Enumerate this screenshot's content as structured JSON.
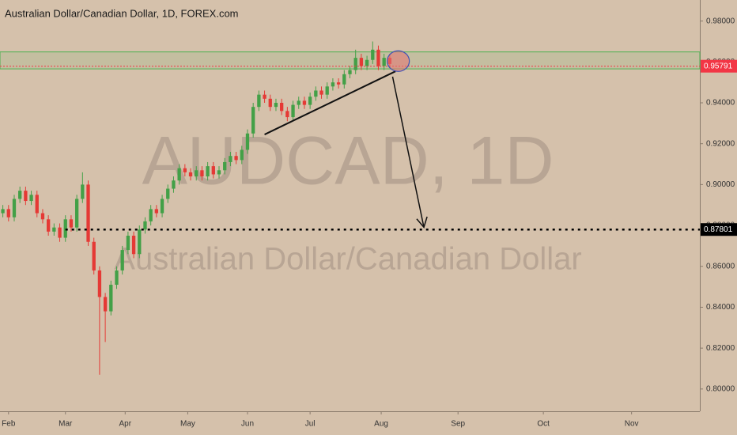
{
  "chart_data": {
    "type": "candlestick",
    "title": "Australian Dollar/Canadian Dollar, 1D, FOREX.com",
    "watermark": "AUDCAD, 1D",
    "watermark_subtitle": "Australian Dollar/Canadian Dollar",
    "up_color": "#43a047",
    "down_color": "#e53935",
    "x": [
      -2,
      0,
      2,
      4,
      6,
      8,
      10,
      12,
      14,
      16,
      18,
      20,
      22,
      24,
      26,
      28,
      30,
      32,
      34,
      36,
      38,
      40,
      42,
      44,
      46,
      48,
      50,
      52,
      54,
      56,
      58,
      60,
      62,
      64,
      66,
      68,
      70,
      72,
      74,
      76,
      78,
      80,
      82,
      84,
      86,
      88,
      90,
      92,
      94,
      96,
      98,
      100,
      102,
      104,
      106,
      108,
      110,
      112,
      114,
      116,
      118,
      120,
      122,
      124,
      126,
      128,
      130,
      132,
      134
    ],
    "open": [
      0.886,
      0.888,
      0.884,
      0.893,
      0.897,
      0.892,
      0.895,
      0.886,
      0.883,
      0.877,
      0.879,
      0.874,
      0.883,
      0.879,
      0.893,
      0.9,
      0.872,
      0.858,
      0.845,
      0.838,
      0.851,
      0.858,
      0.868,
      0.875,
      0.866,
      0.878,
      0.882,
      0.888,
      0.886,
      0.893,
      0.898,
      0.902,
      0.908,
      0.906,
      0.904,
      0.907,
      0.904,
      0.909,
      0.905,
      0.907,
      0.911,
      0.914,
      0.912,
      0.917,
      0.925,
      0.938,
      0.944,
      0.942,
      0.938,
      0.94,
      0.936,
      0.933,
      0.939,
      0.941,
      0.939,
      0.943,
      0.946,
      0.944,
      0.948,
      0.95,
      0.949,
      0.954,
      0.956,
      0.962,
      0.958,
      0.961,
      0.966,
      0.958,
      0.962
    ],
    "high": [
      0.89,
      0.89,
      0.895,
      0.899,
      0.899,
      0.897,
      0.897,
      0.888,
      0.885,
      0.881,
      0.881,
      0.885,
      0.885,
      0.895,
      0.906,
      0.902,
      0.874,
      0.86,
      0.847,
      0.853,
      0.86,
      0.87,
      0.877,
      0.877,
      0.88,
      0.884,
      0.89,
      0.89,
      0.895,
      0.9,
      0.904,
      0.91,
      0.91,
      0.908,
      0.909,
      0.909,
      0.911,
      0.911,
      0.909,
      0.913,
      0.916,
      0.916,
      0.919,
      0.927,
      0.94,
      0.946,
      0.946,
      0.944,
      0.942,
      0.942,
      0.938,
      0.941,
      0.943,
      0.943,
      0.945,
      0.948,
      0.948,
      0.95,
      0.952,
      0.952,
      0.956,
      0.958,
      0.966,
      0.964,
      0.963,
      0.97,
      0.968,
      0.964,
      0.964
    ],
    "low": [
      0.884,
      0.882,
      0.882,
      0.891,
      0.89,
      0.89,
      0.884,
      0.881,
      0.875,
      0.875,
      0.872,
      0.872,
      0.877,
      0.877,
      0.891,
      0.87,
      0.856,
      0.807,
      0.823,
      0.836,
      0.849,
      0.856,
      0.866,
      0.864,
      0.864,
      0.876,
      0.88,
      0.884,
      0.884,
      0.891,
      0.896,
      0.9,
      0.904,
      0.902,
      0.902,
      0.902,
      0.902,
      0.903,
      0.903,
      0.905,
      0.909,
      0.91,
      0.91,
      0.915,
      0.923,
      0.936,
      0.94,
      0.936,
      0.936,
      0.934,
      0.931,
      0.931,
      0.937,
      0.937,
      0.937,
      0.941,
      0.942,
      0.942,
      0.946,
      0.947,
      0.947,
      0.952,
      0.954,
      0.956,
      0.956,
      0.959,
      0.956,
      0.956,
      0.957
    ],
    "close": [
      0.888,
      0.884,
      0.893,
      0.897,
      0.892,
      0.895,
      0.886,
      0.883,
      0.877,
      0.879,
      0.874,
      0.883,
      0.879,
      0.893,
      0.9,
      0.872,
      0.858,
      0.845,
      0.838,
      0.851,
      0.858,
      0.868,
      0.875,
      0.866,
      0.878,
      0.882,
      0.888,
      0.886,
      0.893,
      0.898,
      0.902,
      0.908,
      0.906,
      0.904,
      0.907,
      0.904,
      0.909,
      0.905,
      0.907,
      0.911,
      0.914,
      0.912,
      0.917,
      0.925,
      0.938,
      0.944,
      0.942,
      0.938,
      0.94,
      0.936,
      0.933,
      0.939,
      0.941,
      0.939,
      0.943,
      0.946,
      0.944,
      0.948,
      0.95,
      0.949,
      0.954,
      0.956,
      0.962,
      0.958,
      0.961,
      0.966,
      0.958,
      0.962,
      0.959
    ],
    "xlim": [
      -3,
      243
    ],
    "xticks": [
      {
        "value": 0,
        "label": "Feb"
      },
      {
        "value": 20,
        "label": "Mar"
      },
      {
        "value": 41,
        "label": "Apr"
      },
      {
        "value": 63,
        "label": "May"
      },
      {
        "value": 84,
        "label": "Jun"
      },
      {
        "value": 106,
        "label": "Jul"
      },
      {
        "value": 131,
        "label": "Aug"
      },
      {
        "value": 158,
        "label": "Sep"
      },
      {
        "value": 188,
        "label": "Oct"
      },
      {
        "value": 219,
        "label": "Nov"
      }
    ],
    "ylim": [
      0.7891,
      0.9903
    ],
    "yticks": [
      {
        "value": 0.8,
        "label": "0.80000"
      },
      {
        "value": 0.82,
        "label": "0.82000"
      },
      {
        "value": 0.84,
        "label": "0.84000"
      },
      {
        "value": 0.86,
        "label": "0.86000"
      },
      {
        "value": 0.88,
        "label": "0.88000"
      },
      {
        "value": 0.9,
        "label": "0.90000"
      },
      {
        "value": 0.92,
        "label": "0.92000"
      },
      {
        "value": 0.94,
        "label": "0.94000"
      },
      {
        "value": 0.96,
        "label": "0.96000"
      },
      {
        "value": 0.98,
        "label": "0.98000"
      }
    ],
    "zone": {
      "low": 0.9566,
      "high": 0.9649,
      "color": "#4caf50"
    },
    "trendline": {
      "x": [
        90,
        136
      ],
      "y": [
        0.9245,
        0.9554
      ]
    },
    "arrow": {
      "x": [
        135,
        146
      ],
      "y": [
        0.9528,
        0.8791
      ]
    },
    "ellipse": {
      "x": 137,
      "y": 0.9604
    },
    "price_lines": [
      {
        "value": 0.95791,
        "color": "#f23645"
      },
      {
        "value": 0.87801,
        "color": "#000000"
      }
    ]
  }
}
